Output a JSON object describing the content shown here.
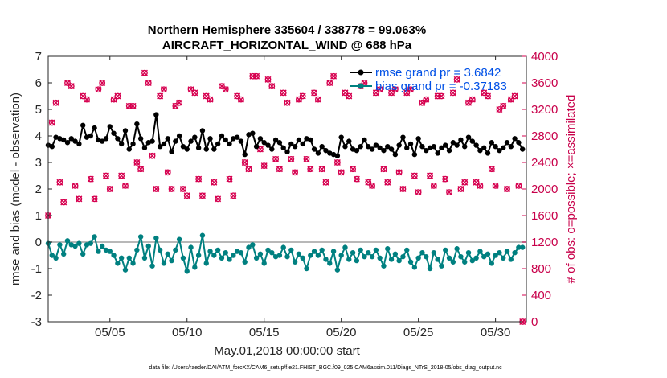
{
  "chart_data": {
    "type": "line",
    "title": "Northern Hemisphere 335604 / 338778 = 99.063%",
    "subtitle": "AIRCRAFT_HORIZONTAL_WIND @ 688 hPa",
    "xlabel": "May.01,2018 00:00:00 start",
    "ylabel": "rmse and bias (model - observation)",
    "ylabel_right": "# of obs: o=possible; ×=assimilated",
    "footer": "data file: /Users/raeder/DAI/ATM_forcXX/CAM6_setup/f.e21.FHIST_BGC.f09_025.CAM6assim.011/Diags_NTrS_2018-05/obs_diag_output.nc",
    "xlim": [
      1,
      32
    ],
    "ylim": [
      -3,
      7
    ],
    "ylim_right": [
      0,
      4000
    ],
    "x_ticks": [
      5,
      10,
      15,
      20,
      25,
      30
    ],
    "x_tick_labels": [
      "05/05",
      "05/10",
      "05/15",
      "05/20",
      "05/25",
      "05/30"
    ],
    "y_ticks": [
      -3,
      -2,
      -1,
      0,
      1,
      2,
      3,
      4,
      5,
      6,
      7
    ],
    "y_tick_labels": [
      "-3",
      "-2",
      "-1",
      "0",
      "1",
      "2",
      "3",
      "4",
      "5",
      "6",
      "7"
    ],
    "y_right_ticks": [
      0,
      400,
      800,
      1200,
      1600,
      2000,
      2400,
      2800,
      3200,
      3600,
      4000
    ],
    "y_right_tick_labels": [
      "0",
      "400",
      "800",
      "1200",
      "1600",
      "2000",
      "2400",
      "2800",
      "3200",
      "3600",
      "4000"
    ],
    "legend": [
      {
        "label": "rmse grand pr = 3.6842"
      },
      {
        "label": "bias grand pr = -0.37183"
      }
    ],
    "colors": {
      "rmse": "#000000",
      "bias": "#008080",
      "obs": "#d6004f",
      "zero_line": "#b8b8b8"
    },
    "series": [
      {
        "name": "rmse",
        "x": [
          1.0,
          1.25,
          1.5,
          1.75,
          2.0,
          2.25,
          2.5,
          2.75,
          3.0,
          3.25,
          3.5,
          3.75,
          4.0,
          4.25,
          4.5,
          4.75,
          5.0,
          5.25,
          5.5,
          5.75,
          6.0,
          6.25,
          6.5,
          6.75,
          7.0,
          7.25,
          7.5,
          7.75,
          8.0,
          8.25,
          8.5,
          8.75,
          9.0,
          9.25,
          9.5,
          9.75,
          10.0,
          10.25,
          10.5,
          10.75,
          11.0,
          11.25,
          11.5,
          11.75,
          12.0,
          12.25,
          12.5,
          12.75,
          13.0,
          13.25,
          13.5,
          13.75,
          14.0,
          14.25,
          14.5,
          14.75,
          15.0,
          15.25,
          15.5,
          15.75,
          16.0,
          16.25,
          16.5,
          16.75,
          17.0,
          17.25,
          17.5,
          17.75,
          18.0,
          18.25,
          18.5,
          18.75,
          19.0,
          19.25,
          19.5,
          19.75,
          20.0,
          20.25,
          20.5,
          20.75,
          21.0,
          21.25,
          21.5,
          21.75,
          22.0,
          22.25,
          22.5,
          22.75,
          23.0,
          23.25,
          23.5,
          23.75,
          24.0,
          24.25,
          24.5,
          24.75,
          25.0,
          25.25,
          25.5,
          25.75,
          26.0,
          26.25,
          26.5,
          26.75,
          27.0,
          27.25,
          27.5,
          27.75,
          28.0,
          28.25,
          28.5,
          28.75,
          29.0,
          29.25,
          29.5,
          29.75,
          30.0,
          30.25,
          30.5,
          30.75,
          31.0,
          31.25,
          31.5,
          31.75
        ],
        "values": [
          3.65,
          3.6,
          3.95,
          3.9,
          3.85,
          3.75,
          3.9,
          3.8,
          3.7,
          4.4,
          3.95,
          4.0,
          4.3,
          3.85,
          3.8,
          3.9,
          4.35,
          4.1,
          3.9,
          3.7,
          4.2,
          3.5,
          3.7,
          4.45,
          3.9,
          3.55,
          3.75,
          3.8,
          4.8,
          3.6,
          3.7,
          3.9,
          3.4,
          3.8,
          4.0,
          3.6,
          3.5,
          3.8,
          3.95,
          3.55,
          4.2,
          3.5,
          3.9,
          3.5,
          3.7,
          4.0,
          3.85,
          3.7,
          3.9,
          3.95,
          3.8,
          3.3,
          4.05,
          4.1,
          3.6,
          3.9,
          3.75,
          3.65,
          3.5,
          3.85,
          3.75,
          3.55,
          3.4,
          3.7,
          3.6,
          3.85,
          3.7,
          3.9,
          3.85,
          3.5,
          3.35,
          3.6,
          3.45,
          3.35,
          3.3,
          3.25,
          3.95,
          3.6,
          3.8,
          3.5,
          3.45,
          3.6,
          3.85,
          3.6,
          3.5,
          3.65,
          3.55,
          3.45,
          3.6,
          3.5,
          3.3,
          3.65,
          3.95,
          3.55,
          3.7,
          3.3,
          3.9,
          3.6,
          3.45,
          3.55,
          3.6,
          3.35,
          3.55,
          3.65,
          3.45,
          3.75,
          3.65,
          3.85,
          3.6,
          3.95,
          3.8,
          3.65,
          3.45,
          3.55,
          3.35,
          3.75,
          3.6,
          3.45,
          3.55,
          3.75,
          3.6,
          3.9,
          3.75,
          3.5
        ]
      },
      {
        "name": "bias",
        "x": [
          1.0,
          1.25,
          1.5,
          1.75,
          2.0,
          2.25,
          2.5,
          2.75,
          3.0,
          3.25,
          3.5,
          3.75,
          4.0,
          4.25,
          4.5,
          4.75,
          5.0,
          5.25,
          5.5,
          5.75,
          6.0,
          6.25,
          6.5,
          6.75,
          7.0,
          7.25,
          7.5,
          7.75,
          8.0,
          8.25,
          8.5,
          8.75,
          9.0,
          9.25,
          9.5,
          9.75,
          10.0,
          10.25,
          10.5,
          10.75,
          11.0,
          11.25,
          11.5,
          11.75,
          12.0,
          12.25,
          12.5,
          12.75,
          13.0,
          13.25,
          13.5,
          13.75,
          14.0,
          14.25,
          14.5,
          14.75,
          15.0,
          15.25,
          15.5,
          15.75,
          16.0,
          16.25,
          16.5,
          16.75,
          17.0,
          17.25,
          17.5,
          17.75,
          18.0,
          18.25,
          18.5,
          18.75,
          19.0,
          19.25,
          19.5,
          19.75,
          20.0,
          20.25,
          20.5,
          20.75,
          21.0,
          21.25,
          21.5,
          21.75,
          22.0,
          22.25,
          22.5,
          22.75,
          23.0,
          23.25,
          23.5,
          23.75,
          24.0,
          24.25,
          24.5,
          24.75,
          25.0,
          25.25,
          25.5,
          25.75,
          26.0,
          26.25,
          26.5,
          26.75,
          27.0,
          27.25,
          27.5,
          27.75,
          28.0,
          28.25,
          28.5,
          28.75,
          29.0,
          29.25,
          29.5,
          29.75,
          30.0,
          30.25,
          30.5,
          30.75,
          31.0,
          31.25,
          31.5,
          31.75
        ],
        "values": [
          -0.05,
          -0.5,
          -0.6,
          -0.1,
          -0.45,
          0.05,
          -0.1,
          -0.15,
          -0.05,
          -0.45,
          -0.1,
          -0.05,
          0.2,
          -0.35,
          -0.15,
          -0.3,
          -0.35,
          -0.5,
          -0.8,
          -0.6,
          -1.05,
          -0.6,
          -0.8,
          -0.3,
          0.2,
          -0.6,
          -0.15,
          -0.9,
          0.15,
          -0.3,
          -0.8,
          -0.45,
          -0.7,
          -0.3,
          0.1,
          -0.6,
          -1.1,
          -0.2,
          -0.95,
          -0.5,
          0.25,
          -0.8,
          -0.35,
          -0.5,
          -0.3,
          -0.6,
          -0.4,
          -0.65,
          -0.5,
          -0.35,
          -0.4,
          -0.75,
          -0.2,
          -0.1,
          -0.6,
          -0.45,
          -0.8,
          -0.3,
          -0.4,
          -0.55,
          -0.5,
          -0.2,
          -0.55,
          -0.3,
          -0.75,
          -0.45,
          -0.6,
          -1.0,
          -0.5,
          -0.35,
          -0.5,
          -0.3,
          -0.65,
          -0.8,
          -0.35,
          -1.05,
          -0.5,
          -0.2,
          -0.65,
          -0.4,
          -0.7,
          -0.3,
          -0.55,
          -0.4,
          -0.55,
          -0.3,
          -0.6,
          -0.9,
          -0.25,
          -0.65,
          -0.45,
          -0.7,
          -0.55,
          -0.3,
          -0.75,
          -0.95,
          -0.6,
          -0.4,
          -0.55,
          -1.0,
          -0.4,
          -0.65,
          -0.9,
          -0.3,
          -0.6,
          -0.75,
          -0.25,
          -0.55,
          -0.75,
          -0.4,
          -0.7,
          -0.6,
          -0.35,
          -0.55,
          -0.45,
          -0.8,
          -0.5,
          -0.4,
          -0.6,
          -0.35,
          -0.65,
          -0.4,
          -0.2,
          -0.2
        ]
      },
      {
        "name": "obs_possible",
        "x": [
          1.0,
          1.25,
          1.5,
          1.75,
          2.0,
          2.25,
          2.5,
          2.75,
          3.0,
          3.25,
          3.5,
          3.75,
          4.0,
          4.25,
          4.5,
          4.75,
          5.0,
          5.25,
          5.5,
          5.75,
          6.0,
          6.25,
          6.5,
          6.75,
          7.0,
          7.25,
          7.5,
          7.75,
          8.0,
          8.25,
          8.5,
          8.75,
          9.0,
          9.25,
          9.5,
          9.75,
          10.0,
          10.25,
          10.5,
          10.75,
          11.0,
          11.25,
          11.5,
          11.75,
          12.0,
          12.25,
          12.5,
          12.75,
          13.0,
          13.25,
          13.5,
          13.75,
          14.0,
          14.25,
          14.5,
          14.75,
          15.0,
          15.25,
          15.5,
          15.75,
          16.0,
          16.25,
          16.5,
          16.75,
          17.0,
          17.25,
          17.5,
          17.75,
          18.0,
          18.25,
          18.5,
          18.75,
          19.0,
          19.25,
          19.5,
          19.75,
          20.0,
          20.25,
          20.5,
          20.75,
          21.0,
          21.25,
          21.5,
          21.75,
          22.0,
          22.25,
          22.5,
          22.75,
          23.0,
          23.25,
          23.5,
          23.75,
          24.0,
          24.25,
          24.5,
          24.75,
          25.0,
          25.25,
          25.5,
          25.75,
          26.0,
          26.25,
          26.5,
          26.75,
          27.0,
          27.25,
          27.5,
          27.75,
          28.0,
          28.25,
          28.5,
          28.75,
          29.0,
          29.25,
          29.5,
          29.75,
          30.0,
          30.25,
          30.5,
          30.75,
          31.0,
          31.25,
          31.5,
          31.75
        ],
        "values": [
          1600,
          3000,
          3300,
          2100,
          1800,
          3600,
          3550,
          2050,
          1850,
          3400,
          3350,
          2150,
          1850,
          3500,
          3600,
          2200,
          2000,
          3350,
          3400,
          2200,
          2050,
          3250,
          3250,
          2400,
          2300,
          3750,
          3600,
          2500,
          2000,
          3400,
          3500,
          2250,
          2000,
          3250,
          3300,
          2000,
          1900,
          3500,
          3450,
          2150,
          1900,
          3400,
          3350,
          2100,
          1850,
          3550,
          3500,
          2150,
          1900,
          3400,
          3350,
          2400,
          2300,
          3700,
          3700,
          2600,
          2350,
          3650,
          3550,
          2450,
          2300,
          3450,
          3300,
          2450,
          2250,
          3350,
          3400,
          2450,
          2300,
          3450,
          3350,
          2300,
          2100,
          3600,
          3700,
          2400,
          2250,
          3450,
          3400,
          2300,
          2150,
          3550,
          3600,
          2100,
          2050,
          3450,
          3500,
          2300,
          2100,
          3450,
          3500,
          2250,
          2000,
          3450,
          3500,
          2200,
          1950,
          3300,
          3350,
          2200,
          2050,
          3400,
          3400,
          2150,
          1950,
          3450,
          3650,
          2000,
          2100,
          3300,
          3350,
          2100,
          2050,
          3450,
          3400,
          2300,
          2050,
          3200,
          3250,
          2000,
          3350,
          3400,
          2050,
          0
        ]
      }
    ]
  }
}
